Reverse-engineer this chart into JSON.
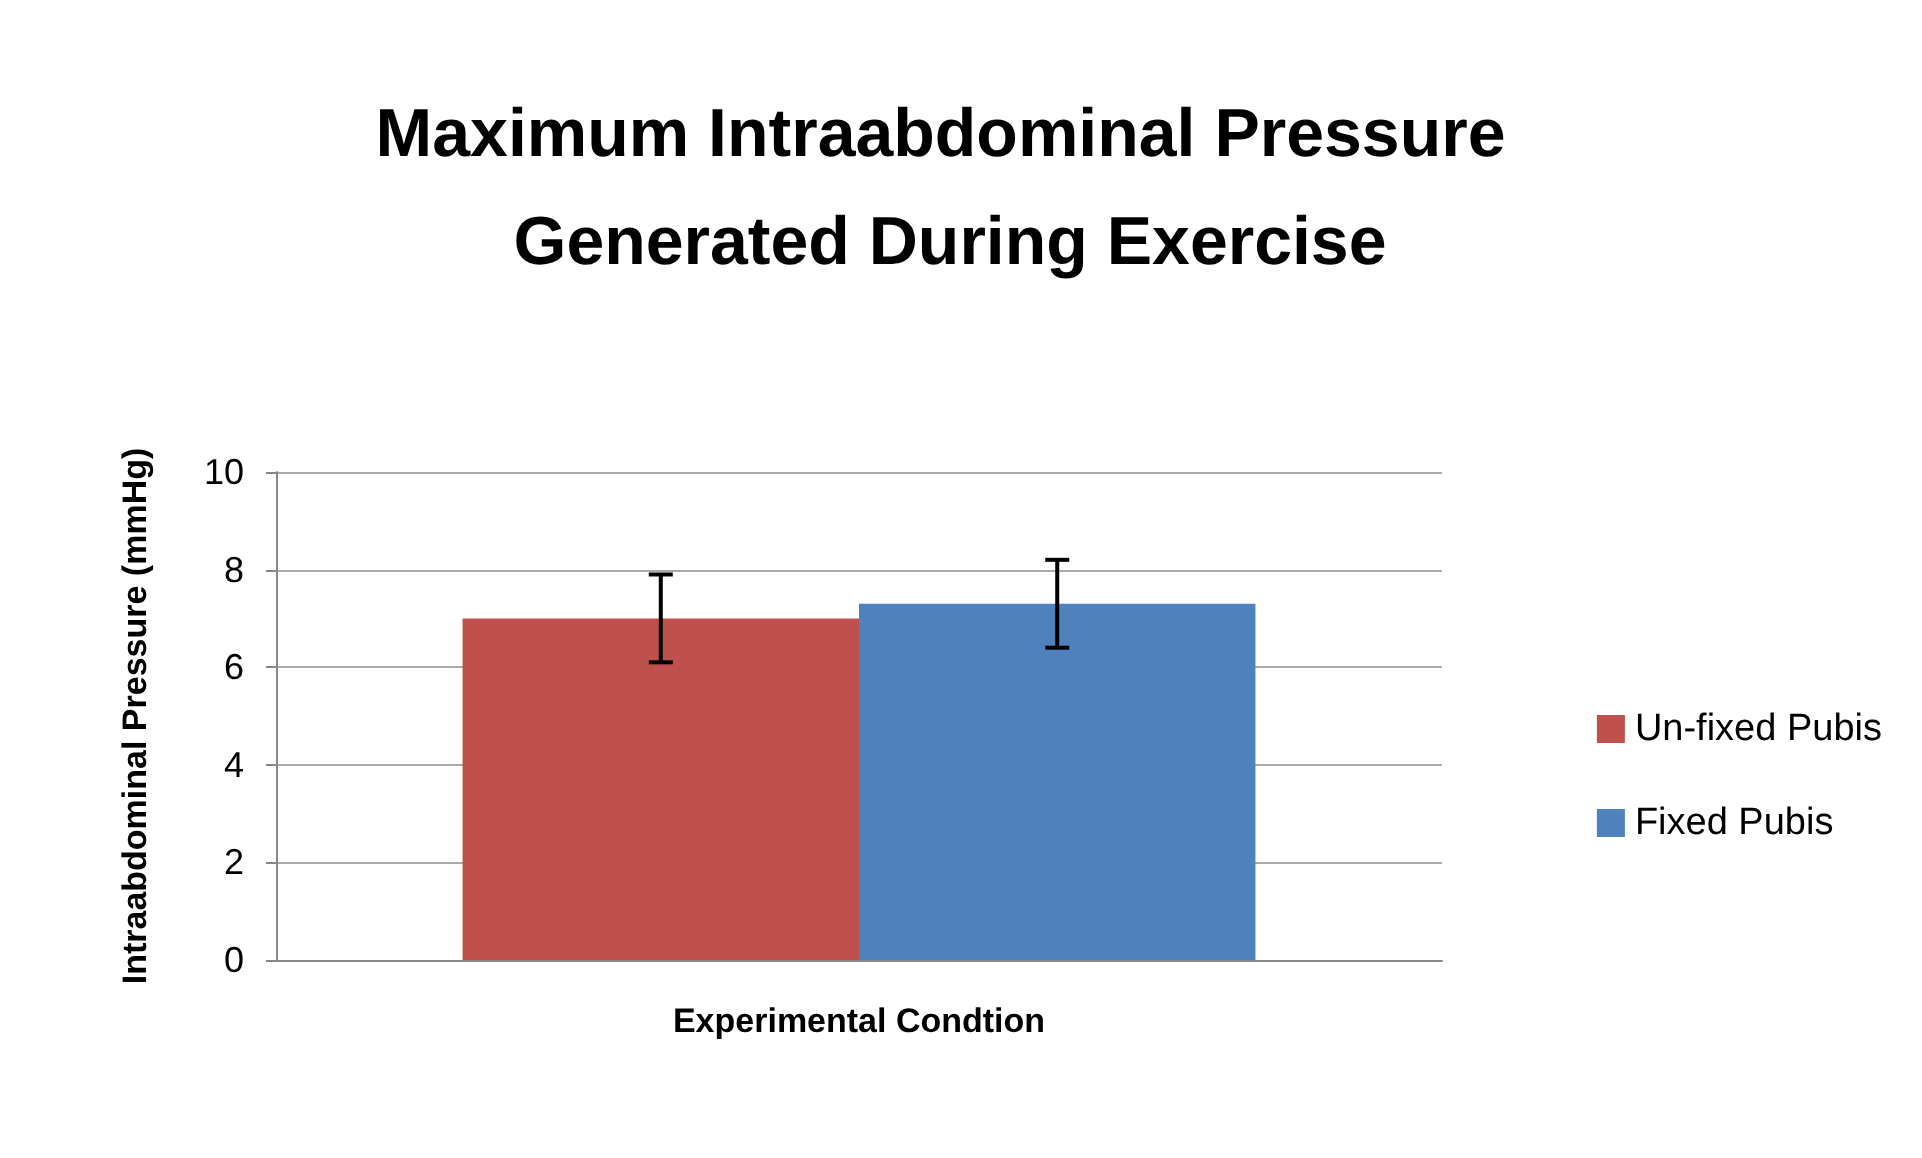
{
  "chart_data": {
    "type": "bar",
    "title": "Maximum Intraabdominal Pressure Generated During Exercise",
    "xlabel": "Experimental Condtion",
    "ylabel": "Intraabdominal Pressure (mmHg)",
    "categories": [
      null
    ],
    "series": [
      {
        "name": "Un-fixed Pubis",
        "color": "#c0504d",
        "values": [
          7.0
        ],
        "errors": [
          0.9
        ]
      },
      {
        "name": "Fixed Pubis",
        "color": "#4f81bd",
        "values": [
          7.3
        ],
        "errors": [
          0.9
        ]
      }
    ],
    "ylim": [
      0,
      10
    ],
    "yticks": [
      0,
      2,
      4,
      6,
      8,
      10
    ],
    "grid": "y",
    "legend": "right"
  }
}
